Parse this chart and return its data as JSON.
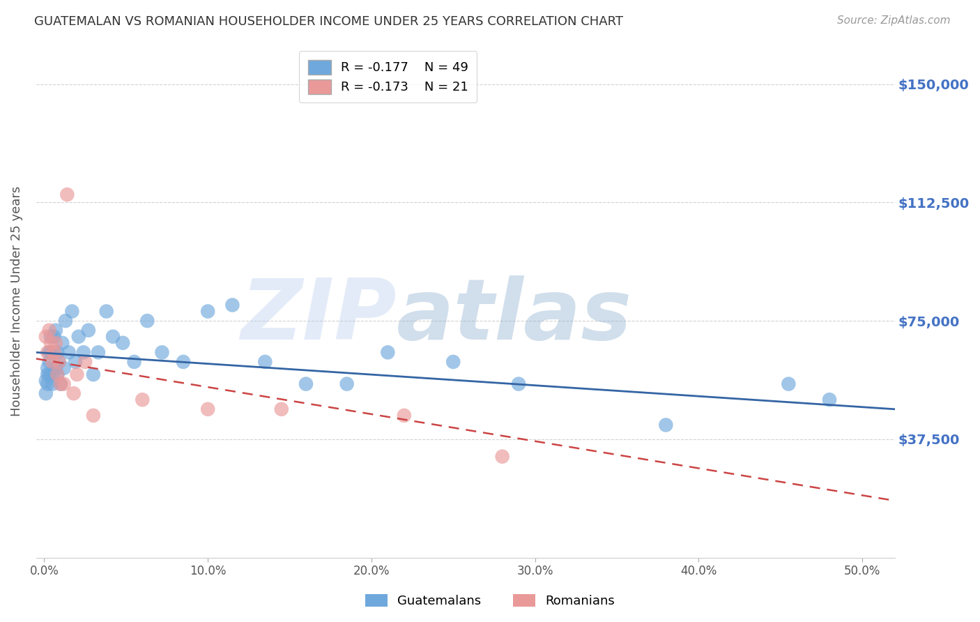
{
  "title": "GUATEMALAN VS ROMANIAN HOUSEHOLDER INCOME UNDER 25 YEARS CORRELATION CHART",
  "source": "Source: ZipAtlas.com",
  "ylabel": "Householder Income Under 25 years",
  "xlabel_ticks": [
    "0.0%",
    "10.0%",
    "20.0%",
    "30.0%",
    "40.0%",
    "50.0%"
  ],
  "xlabel_vals": [
    0.0,
    0.1,
    0.2,
    0.3,
    0.4,
    0.5
  ],
  "ytick_labels": [
    "$37,500",
    "$75,000",
    "$112,500",
    "$150,000"
  ],
  "ytick_vals": [
    37500,
    75000,
    112500,
    150000
  ],
  "ylim": [
    0,
    162500
  ],
  "xlim": [
    -0.005,
    0.52
  ],
  "guatemalan_color": "#6fa8dc",
  "romanian_color": "#ea9999",
  "trendline_guatemalan_color": "#3465a4",
  "trendline_romanian_color": "#cc4444",
  "legend_R_guatemalan": "R = -0.177",
  "legend_N_guatemalan": "N = 49",
  "legend_R_romanian": "R = -0.173",
  "legend_N_romanian": "N = 21",
  "watermark_zip": "ZIP",
  "watermark_atlas": "atlas",
  "background_color": "#ffffff",
  "grid_color": "#cccccc",
  "title_color": "#333333",
  "axis_label_color": "#555555",
  "ytick_color": "#4472c4",
  "xtick_color": "#555555",
  "guatemalan_x": [
    0.001,
    0.001,
    0.002,
    0.002,
    0.002,
    0.003,
    0.003,
    0.003,
    0.004,
    0.004,
    0.005,
    0.005,
    0.006,
    0.006,
    0.007,
    0.007,
    0.008,
    0.008,
    0.009,
    0.01,
    0.011,
    0.012,
    0.013,
    0.015,
    0.017,
    0.019,
    0.021,
    0.024,
    0.027,
    0.03,
    0.033,
    0.038,
    0.042,
    0.048,
    0.055,
    0.063,
    0.072,
    0.085,
    0.1,
    0.115,
    0.135,
    0.16,
    0.185,
    0.21,
    0.25,
    0.29,
    0.38,
    0.455,
    0.48
  ],
  "guatemalan_y": [
    56000,
    52000,
    58000,
    55000,
    60000,
    62000,
    65000,
    58000,
    70000,
    65000,
    58000,
    55000,
    65000,
    70000,
    60000,
    72000,
    65000,
    58000,
    62000,
    55000,
    68000,
    60000,
    75000,
    65000,
    78000,
    62000,
    70000,
    65000,
    72000,
    58000,
    65000,
    78000,
    70000,
    68000,
    62000,
    75000,
    65000,
    62000,
    78000,
    80000,
    62000,
    55000,
    55000,
    65000,
    62000,
    55000,
    42000,
    55000,
    50000
  ],
  "romanian_x": [
    0.001,
    0.002,
    0.003,
    0.004,
    0.005,
    0.006,
    0.007,
    0.008,
    0.009,
    0.01,
    0.012,
    0.014,
    0.018,
    0.02,
    0.025,
    0.03,
    0.06,
    0.1,
    0.145,
    0.22,
    0.28
  ],
  "romanian_y": [
    70000,
    65000,
    72000,
    68000,
    62000,
    65000,
    68000,
    58000,
    62000,
    55000,
    55000,
    115000,
    52000,
    58000,
    62000,
    45000,
    50000,
    47000,
    47000,
    45000,
    32000
  ],
  "trendline_g_x0": -0.005,
  "trendline_g_x1": 0.52,
  "trendline_g_y0": 65000,
  "trendline_g_y1": 47000,
  "trendline_r_x0": -0.005,
  "trendline_r_x1": 0.52,
  "trendline_r_y0": 63000,
  "trendline_r_y1": 18000
}
